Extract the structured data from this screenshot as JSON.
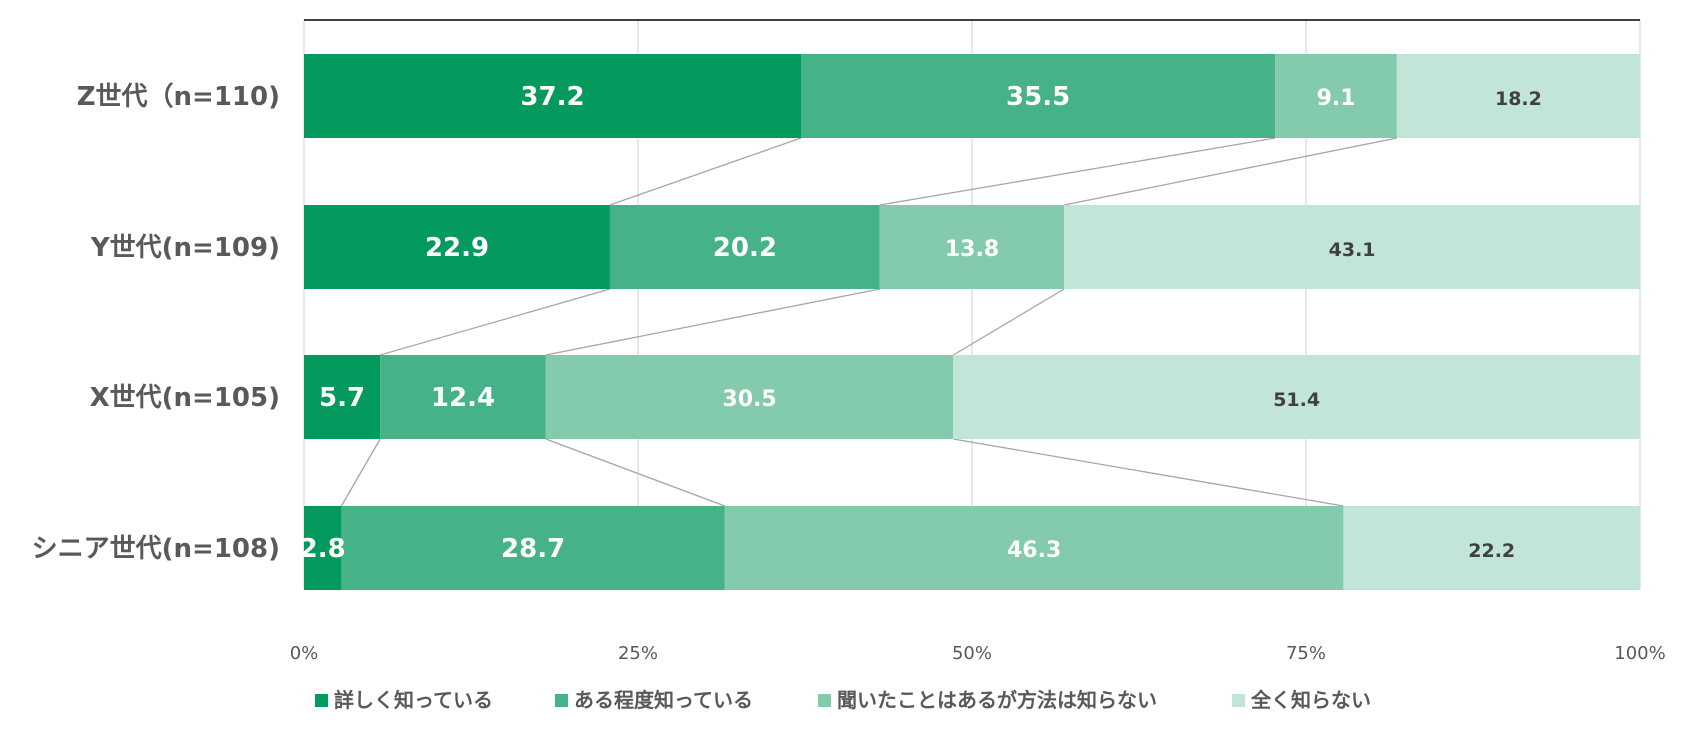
{
  "chart_data": {
    "type": "bar",
    "orientation": "horizontal",
    "stacked": "percent",
    "categories": [
      "Z世代（n=110)",
      "Y世代(n=109)",
      "X世代(n=105)",
      "シニア世代(n=108)"
    ],
    "series": [
      {
        "name": "詳しく知っている",
        "values": [
          37.2,
          22.9,
          5.7,
          2.8
        ],
        "color": "#049a5d",
        "label_color": "#ffffff"
      },
      {
        "name": "ある程度知っている",
        "values": [
          35.5,
          20.2,
          12.4,
          28.7
        ],
        "color": "#45b287",
        "label_color": "#ffffff"
      },
      {
        "name": "聞いたことはあるが方法は知らない",
        "values": [
          9.1,
          13.8,
          30.5,
          46.3
        ],
        "color": "#84cbae",
        "label_color": "#ffffff"
      },
      {
        "name": "全く知らない",
        "values": [
          18.2,
          43.1,
          51.4,
          22.2
        ],
        "color": "#c1e5d6",
        "label_color": "#404040"
      }
    ],
    "x_ticks": [
      "0%",
      "25%",
      "50%",
      "75%",
      "100%"
    ],
    "xlim": [
      0,
      100
    ],
    "grid": true,
    "series_lines": true,
    "legend_position": "bottom"
  }
}
